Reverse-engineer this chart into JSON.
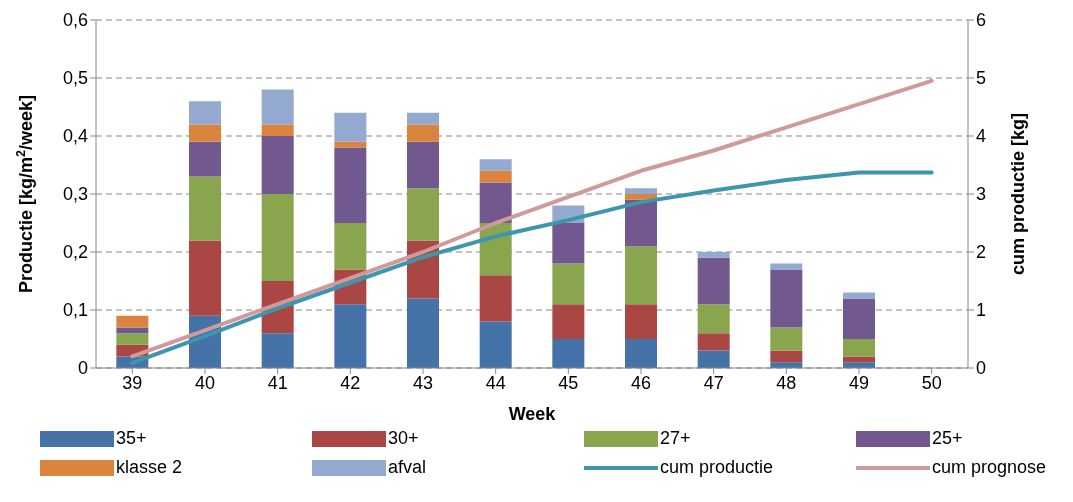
{
  "chart_data": {
    "type": "bar",
    "stacked": true,
    "xlabel": "Week",
    "ylabel": "Productie [kg/m$^{2}$/week]",
    "y2label": "cum productie [kg]",
    "categories": [
      "39",
      "40",
      "41",
      "42",
      "43",
      "44",
      "45",
      "46",
      "47",
      "48",
      "49",
      "50"
    ],
    "series": [
      {
        "name": "35+",
        "color": "#4572a7",
        "values": [
          0.02,
          0.09,
          0.06,
          0.11,
          0.12,
          0.08,
          0.05,
          0.05,
          0.03,
          0.01,
          0.01,
          null
        ]
      },
      {
        "name": "30+",
        "color": "#aa4643",
        "values": [
          0.02,
          0.13,
          0.09,
          0.06,
          0.1,
          0.08,
          0.06,
          0.06,
          0.03,
          0.02,
          0.01,
          null
        ]
      },
      {
        "name": "27+",
        "color": "#89a54e",
        "values": [
          0.02,
          0.11,
          0.15,
          0.08,
          0.09,
          0.09,
          0.07,
          0.1,
          0.05,
          0.04,
          0.03,
          null
        ]
      },
      {
        "name": "25+",
        "color": "#71588f",
        "values": [
          0.01,
          0.06,
          0.1,
          0.13,
          0.08,
          0.07,
          0.07,
          0.08,
          0.08,
          0.1,
          0.07,
          null
        ]
      },
      {
        "name": "klasse 2",
        "color": "#db843d",
        "values": [
          0.02,
          0.03,
          0.02,
          0.01,
          0.03,
          0.02,
          null,
          0.01,
          0,
          0,
          0,
          null
        ]
      },
      {
        "name": "afval",
        "color": "#93a9cf",
        "values": [
          0,
          0.04,
          0.06,
          0.05,
          0.02,
          0.02,
          0.03,
          0.01,
          0.01,
          0.01,
          0.01,
          null
        ]
      },
      {
        "name": "cum productie",
        "type": "line",
        "axis": "y2",
        "color": "#3d96ae",
        "values": [
          0.09,
          0.55,
          1.03,
          1.47,
          1.91,
          2.27,
          2.55,
          2.86,
          3.06,
          3.24,
          3.37,
          3.37
        ]
      },
      {
        "name": "cum prognose",
        "type": "line",
        "axis": "y2",
        "color": "#d09a9a",
        "values": [
          0.2,
          0.65,
          1.1,
          1.55,
          2.0,
          2.5,
          2.95,
          3.4,
          3.75,
          4.15,
          4.55,
          4.95
        ]
      }
    ],
    "ylim": [
      0,
      0.6
    ],
    "yticks": [
      {
        "value": 0,
        "label": "0"
      },
      {
        "value": 0.1,
        "label": "0,1"
      },
      {
        "value": 0.2,
        "label": "0,2"
      },
      {
        "value": 0.3,
        "label": "0,3"
      },
      {
        "value": 0.4,
        "label": "0,4"
      },
      {
        "value": 0.5,
        "label": "0,5"
      },
      {
        "value": 0.6,
        "label": "0,6"
      }
    ],
    "y2lim": [
      0,
      6
    ],
    "y2ticks": [
      0,
      1,
      2,
      3,
      4,
      5,
      6
    ],
    "grid": "y",
    "legend": "bottom",
    "marker": "none",
    "line_style": "solid"
  }
}
